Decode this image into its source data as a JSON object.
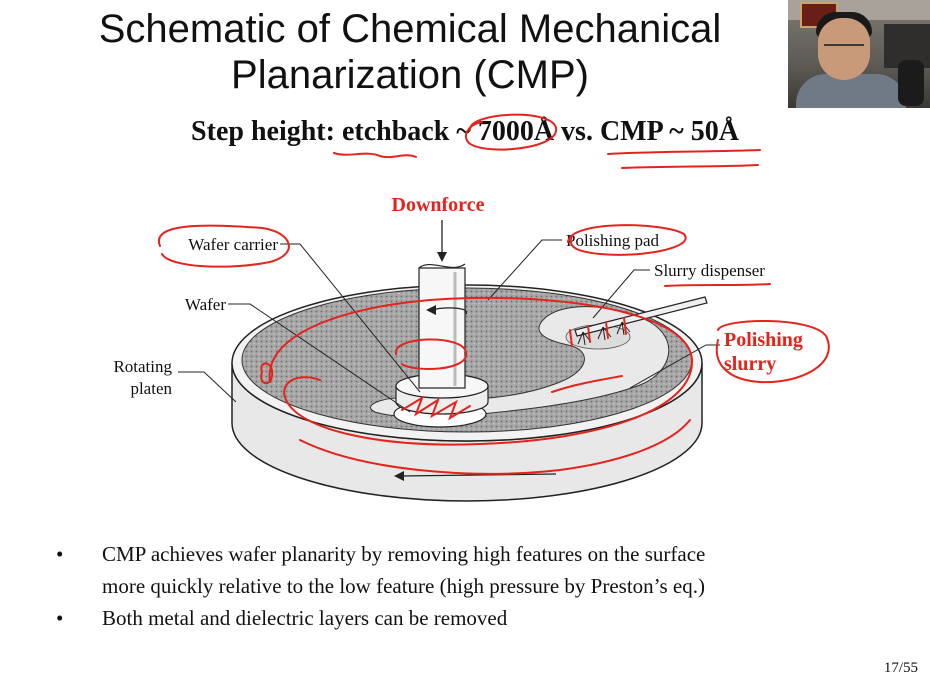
{
  "slide": {
    "title_line1": "Schematic of Chemical Mechanical",
    "title_line2": "Planarization (CMP)",
    "subtitle": "Step height: etchback ~ 7000Å vs. CMP ~ 50Å",
    "page_number": "17/55"
  },
  "diagram": {
    "downforce": "Downforce",
    "wafer_carrier": "Wafer carrier",
    "wafer": "Wafer",
    "rotating_line1": "Rotating",
    "rotating_line2": "platen",
    "polishing_pad": "Polishing pad",
    "slurry_dispenser": "Slurry dispenser",
    "polishing_line1": "Polishing",
    "polishing_line2": "slurry"
  },
  "bullets": [
    {
      "marker": "•",
      "text": "CMP achieves wafer planarity by removing high features on the surface"
    },
    {
      "marker": "",
      "text": "more quickly relative to the low feature (high pressure by Preston’s eq.)"
    },
    {
      "marker": "•",
      "text": "Both metal and dielectric layers can be removed"
    }
  ],
  "colors": {
    "annotation": "#e4241c",
    "pad": "#9a9a9a",
    "platen": "#e6e6e6"
  }
}
